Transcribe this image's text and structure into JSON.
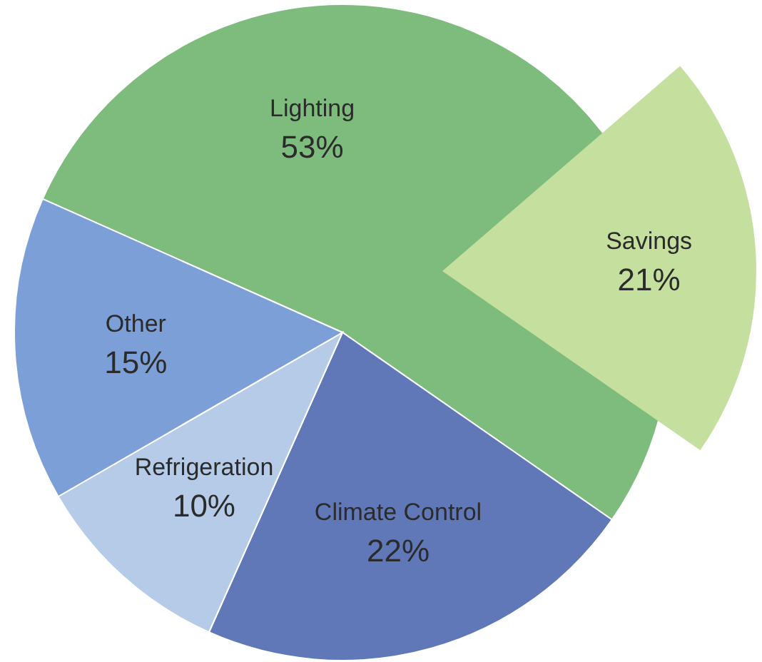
{
  "chart_data": {
    "type": "pie",
    "categories": [
      "Lighting",
      "Climate Control",
      "Refrigeration",
      "Other"
    ],
    "values": [
      53,
      22,
      10,
      15
    ],
    "colors": [
      "#7dbc7c",
      "#6078b8",
      "#b5cbe8",
      "#7c9fd7"
    ],
    "value_labels": [
      "53%",
      "22%",
      "10%",
      "15%"
    ],
    "series": [
      {
        "name": "Savings",
        "colors": [
          "#c4df9e",
          null,
          null,
          null
        ],
        "values": [
          21,
          null,
          null,
          null
        ],
        "value_labels": [
          "21%",
          null,
          null,
          null
        ]
      }
    ]
  }
}
